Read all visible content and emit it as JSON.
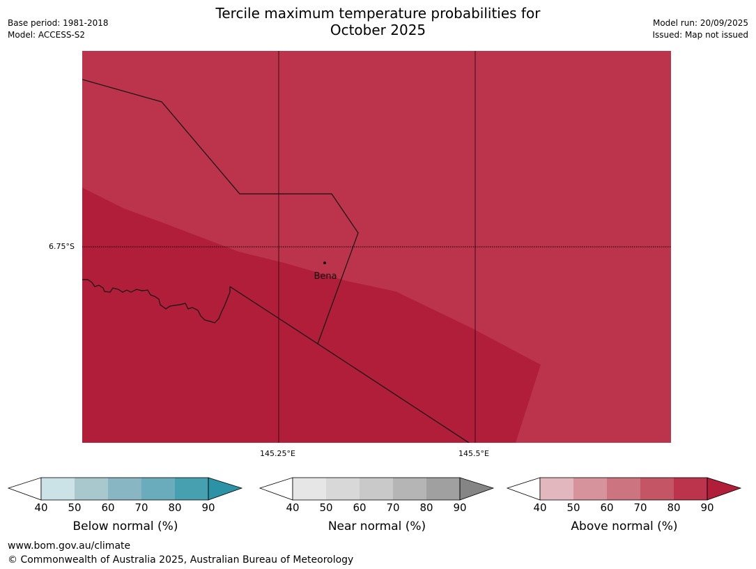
{
  "title_line1": "Tercile maximum temperature probabilities for",
  "title_line2": "October 2025",
  "base_period": "Base period: 1981-2018",
  "model": "Model: ACCESS-S2",
  "model_run": "Model run: 20/09/2025",
  "issued": "Issued: Map not issued",
  "map": {
    "lat_label": "6.75°S",
    "lon_labels": [
      "145.25°E",
      "145.5°E"
    ],
    "town": "Bena",
    "colors": {
      "above_70_80": "#bc344b",
      "above_80_90": "#b01e3a"
    }
  },
  "colorbars": [
    {
      "label": "Below normal (%)",
      "ticks": [
        "40",
        "50",
        "60",
        "70",
        "80",
        "90"
      ],
      "colors": [
        "#ffffff",
        "#cbe2e7",
        "#a8c8ce",
        "#88b6c3",
        "#6aacbb",
        "#47a0b0",
        "#2b93a5"
      ]
    },
    {
      "label": "Near normal (%)",
      "ticks": [
        "40",
        "50",
        "60",
        "70",
        "80",
        "90"
      ],
      "colors": [
        "#ffffff",
        "#e6e6e6",
        "#d8d8d8",
        "#c9c9c9",
        "#b5b5b5",
        "#a0a0a0",
        "#858585"
      ]
    },
    {
      "label": "Above normal (%)",
      "ticks": [
        "40",
        "50",
        "60",
        "70",
        "80",
        "90"
      ],
      "colors": [
        "#ffffff",
        "#e2b7bd",
        "#d6939c",
        "#cc7480",
        "#c45565",
        "#bc344b",
        "#b01e3a"
      ]
    }
  ],
  "footer_url": "www.bom.gov.au/climate",
  "footer_copyright": "© Commonwealth of Australia 2025, Australian Bureau of Meteorology"
}
